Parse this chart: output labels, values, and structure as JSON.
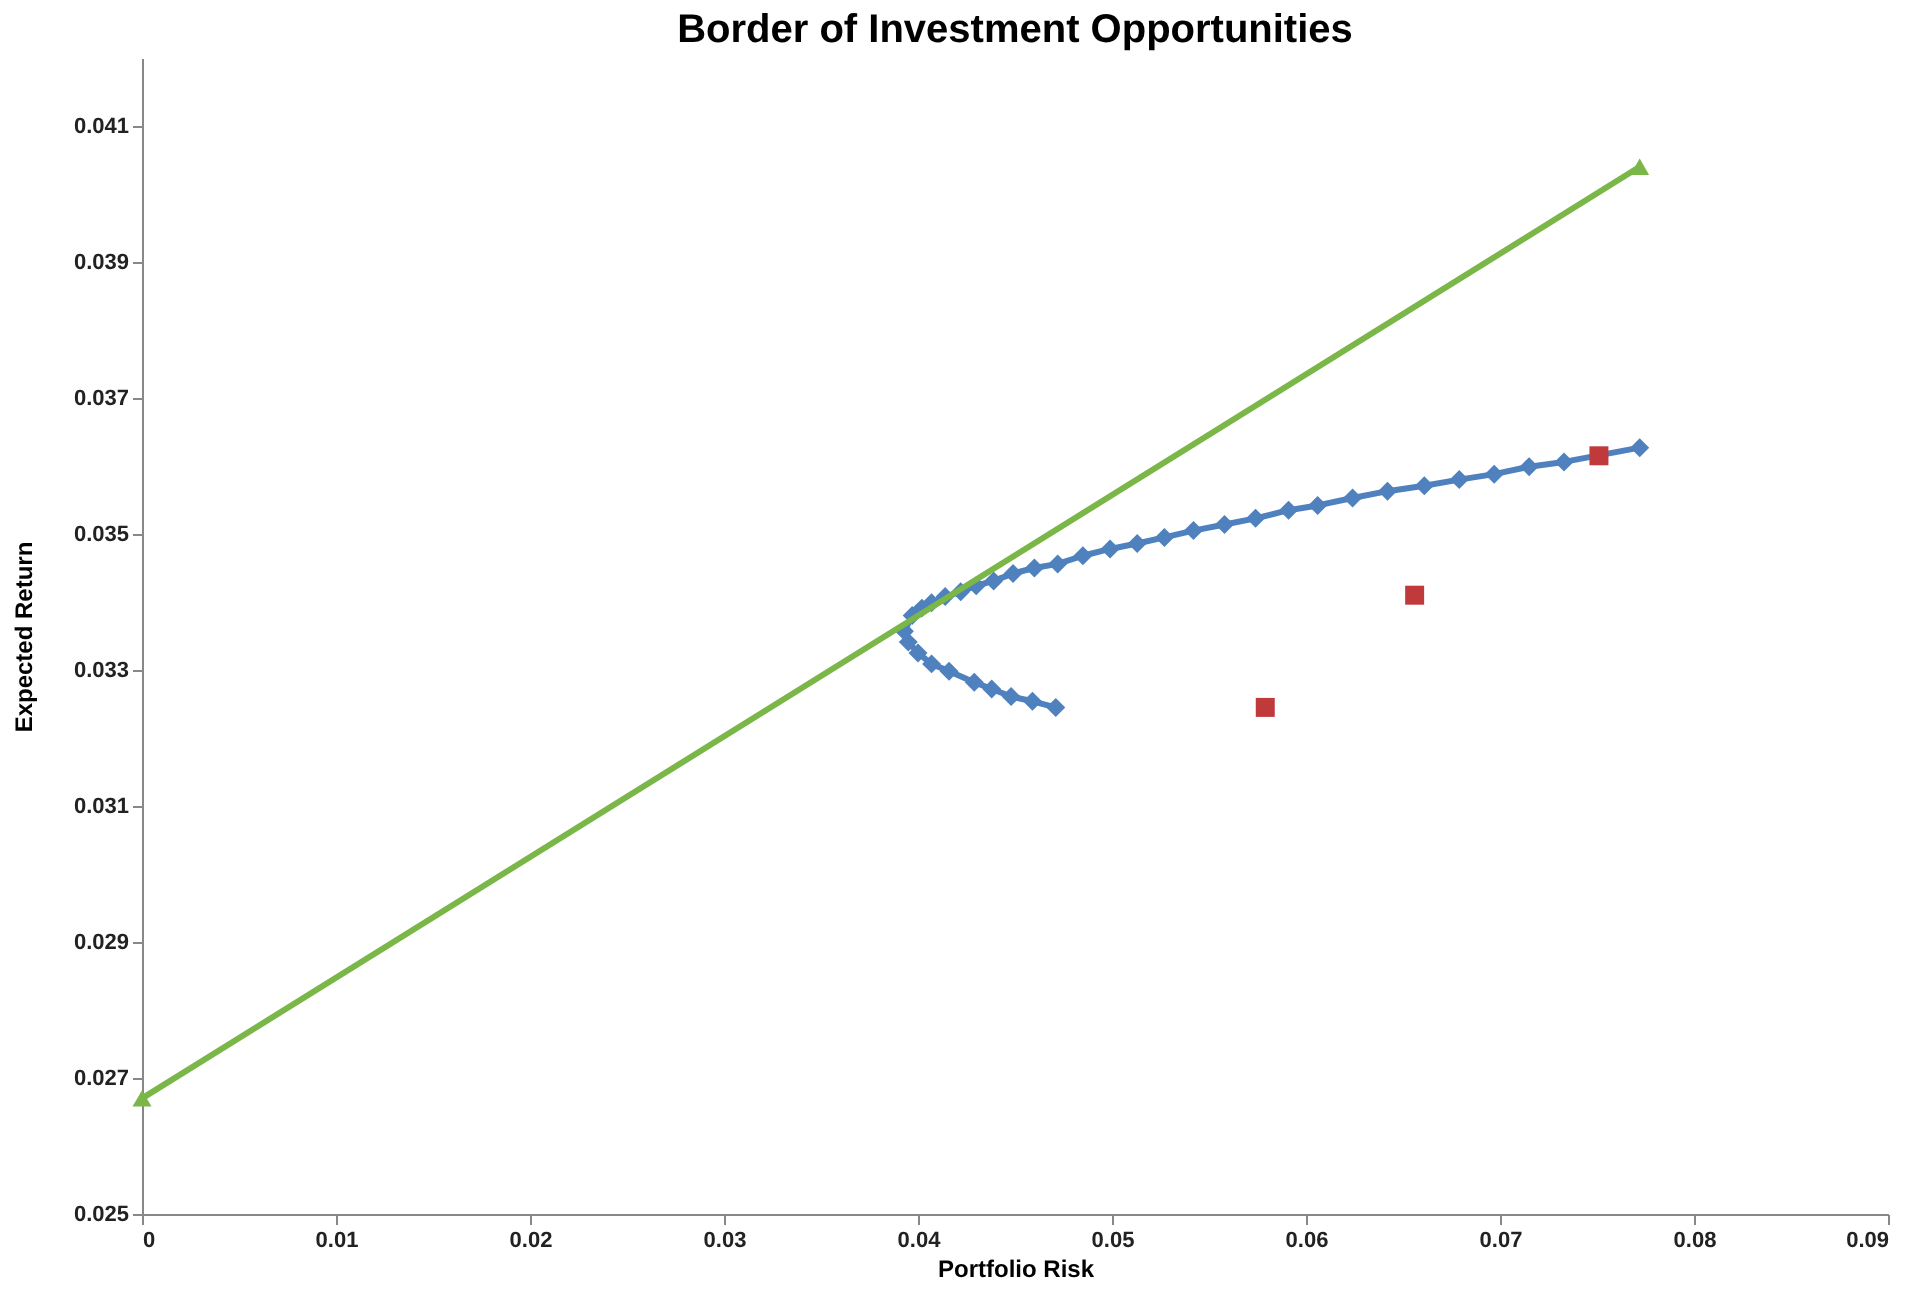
{
  "chart_data": {
    "type": "line",
    "title": "Border of Investment Opportunities",
    "xlabel": "Portfolio Risk",
    "ylabel": "Expected Return",
    "xlim": [
      0,
      0.09
    ],
    "xticks": [
      0,
      0.01,
      0.02,
      0.03,
      0.04,
      0.05,
      0.06,
      0.07,
      0.08,
      0.09
    ],
    "ylim": [
      0.025,
      0.042
    ],
    "yticks": [
      0.025,
      0.027,
      0.029,
      0.031,
      0.033,
      0.035,
      0.037,
      0.039,
      0.041
    ],
    "grid": false,
    "series": [
      {
        "color": "#4e81bd",
        "marker": "diamond",
        "x": [
          0.0471,
          0.0459,
          0.0448,
          0.0438,
          0.0429,
          0.0416,
          0.0407,
          0.04,
          0.0395,
          0.0393,
          0.0397,
          0.0402,
          0.0407,
          0.0414,
          0.0422,
          0.043,
          0.0439,
          0.0449,
          0.046,
          0.0472,
          0.0485,
          0.0499,
          0.0513,
          0.0527,
          0.0542,
          0.0558,
          0.0574,
          0.0591,
          0.0606,
          0.0624,
          0.0642,
          0.0661,
          0.0679,
          0.0697,
          0.0715,
          0.0733,
          0.0772
        ],
        "values": [
          0.03245,
          0.03254,
          0.03261,
          0.03272,
          0.03282,
          0.03298,
          0.03309,
          0.03325,
          0.03341,
          0.03357,
          0.0338,
          0.03391,
          0.03399,
          0.03408,
          0.03415,
          0.03424,
          0.03431,
          0.03442,
          0.0345,
          0.03456,
          0.03468,
          0.03478,
          0.03486,
          0.03495,
          0.03505,
          0.03514,
          0.03523,
          0.03535,
          0.03542,
          0.03553,
          0.03563,
          0.03571,
          0.0358,
          0.03588,
          0.03599,
          0.03606,
          0.03627
        ]
      },
      {
        "type": "scatter",
        "color": "#c0393b",
        "marker": "square",
        "x": [
          0.0751,
          0.0656,
          0.0579
        ],
        "values": [
          0.03615,
          0.0341,
          0.03245
        ]
      },
      {
        "color": "#7ab648",
        "marker": "triangle",
        "x": [
          0,
          0.0772
        ],
        "values": [
          0.0267,
          0.0404
        ]
      }
    ]
  }
}
